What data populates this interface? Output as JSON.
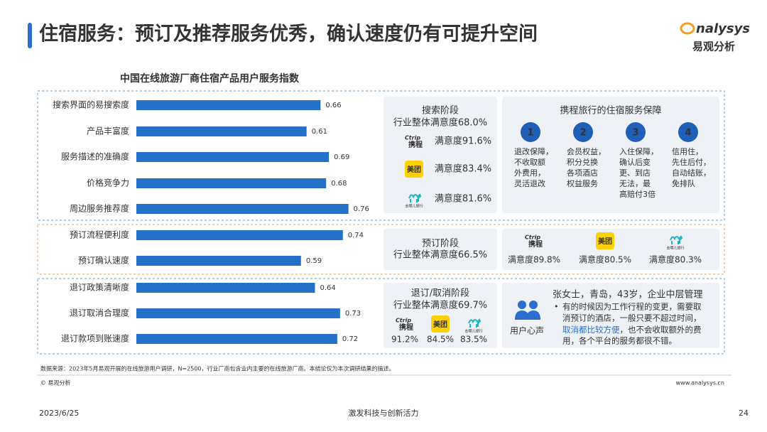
{
  "header": {
    "title": "住宿服务：预订及推荐服务优秀，确认速度仍有可提升空间",
    "logo_en": "nalysys",
    "logo_cn": "易观分析"
  },
  "chart_data": {
    "type": "hbar",
    "title": "中国在线旅游厂商住宿产品用户服务指数",
    "categories": [
      "搜索界面的易搜索度",
      "产品丰富度",
      "服务描述的准确度",
      "价格竞争力",
      "周边服务推荐度",
      "预订流程便利度",
      "预订确认速度",
      "退订政策清晰度",
      "退订取消合理度",
      "退订款项到账速度"
    ],
    "values": [
      0.66,
      0.61,
      0.69,
      0.68,
      0.76,
      0.74,
      0.59,
      0.64,
      0.73,
      0.72
    ],
    "color": "#2470c8",
    "xlim": [
      0,
      0.85
    ]
  },
  "logos": {
    "ctrip_en": "Ctrip",
    "ctrip": "携程",
    "meituan": "美团",
    "qunar": "去哪儿旅行"
  },
  "search": {
    "title": "搜索阶段",
    "overall": "行业整体满意度68.0%",
    "items": [
      "满意度91.6%",
      "满意度83.4%",
      "满意度81.6%"
    ]
  },
  "guarantee": {
    "title": "携程旅行的住宿服务保障",
    "items": [
      {
        "num": "1",
        "lines": [
          "退改保障，",
          "不收取额",
          "外费用，",
          "灵活退改"
        ]
      },
      {
        "num": "2",
        "lines": [
          "会员权益，",
          "积分兑换",
          "各项酒店",
          "权益服务"
        ]
      },
      {
        "num": "3",
        "lines": [
          "入住保障，",
          "确认后变",
          "更、到店",
          "无法，最",
          "高赔付3倍"
        ]
      },
      {
        "num": "4",
        "lines": [
          "信用住，",
          "先住后付，",
          "自动结账，",
          "免排队"
        ]
      }
    ]
  },
  "booking": {
    "title": "预订阶段",
    "overall": "行业整体满意度66.5%",
    "items": [
      "满意度89.8%",
      "满意度80.5%",
      "满意度80.3%"
    ]
  },
  "cancel": {
    "title": "退订/取消阶段",
    "overall": "行业整体满意度69.7%",
    "items": [
      "91.2%",
      "84.5%",
      "83.5%"
    ]
  },
  "voice": {
    "label": "用户心声",
    "person": "张女士，青岛，43岁，企业中层管理",
    "bullet": "•",
    "lines": [
      "有的时候因为工作行程的变更，需要取",
      "消预订的酒店，一般只要不超过时间，"
    ],
    "highlight": "取消都比较方便",
    "rest": [
      "，也不会收取额外的费",
      "用，各个平台的服务都很不错。"
    ]
  },
  "footer": {
    "source": "数据来源：2023年5月易观开展的在线旅游用户调研，N=2500，行业厂商包含业内主要的在线旅游厂商。本结论仅为本次调研结果的描述。",
    "copyright": "© 易观分析",
    "site": "www.analysys.cn",
    "date": "2023/6/25",
    "slogan": "激发科技与创新活力",
    "page": "24"
  }
}
